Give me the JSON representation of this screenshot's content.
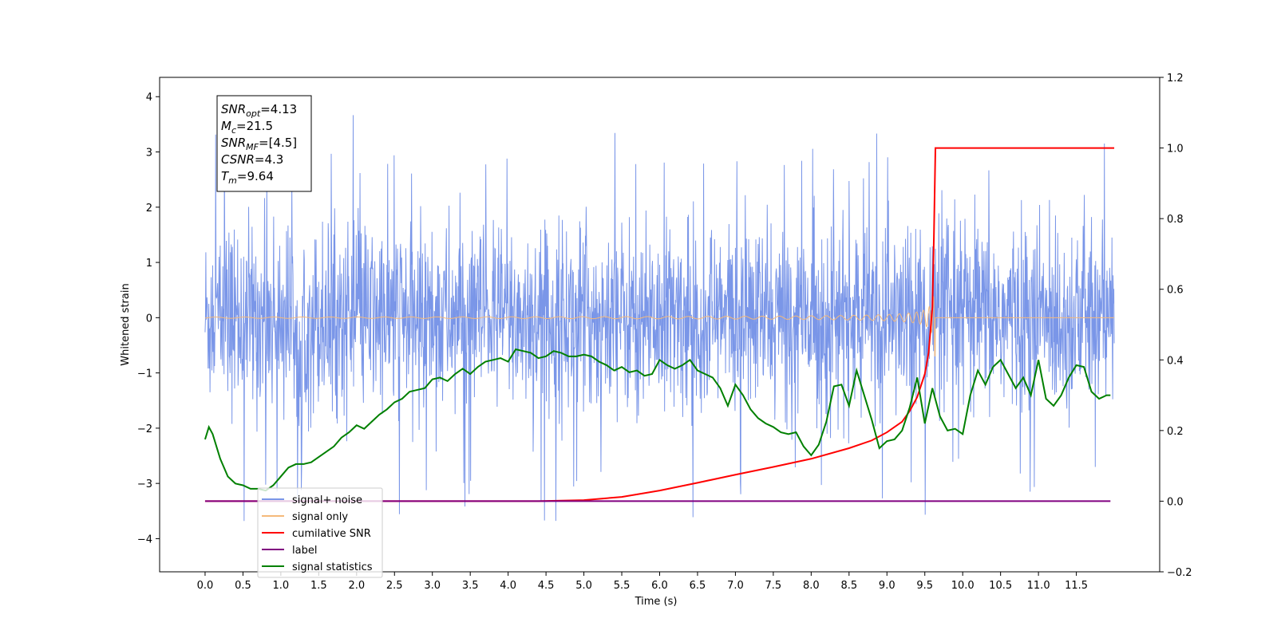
{
  "chart_data": {
    "type": "line",
    "xlabel": "Time (s)",
    "ylabel": "Whitened strain",
    "xlim": [
      -0.6,
      12.6
    ],
    "ylim": [
      -4.6,
      4.35
    ],
    "y2lim": [
      -0.2,
      1.2
    ],
    "x_ticks": [
      "0.0",
      "0.5",
      "1.0",
      "1.5",
      "2.0",
      "2.5",
      "3.0",
      "3.5",
      "4.0",
      "4.5",
      "5.0",
      "5.5",
      "6.0",
      "6.5",
      "7.0",
      "7.5",
      "8.0",
      "8.5",
      "9.0",
      "9.5",
      "10.0",
      "10.5",
      "11.0",
      "11.5"
    ],
    "y_ticks": [
      "4",
      "3",
      "2",
      "1",
      "0",
      "−1",
      "−2",
      "−3",
      "−4"
    ],
    "y2_ticks": [
      "1.2",
      "1.0",
      "0.8",
      "0.6",
      "0.4",
      "0.2",
      "0.0",
      "−0.2"
    ],
    "grid": false,
    "legend_position": "lower-left",
    "annotation": [
      {
        "base": "SNR",
        "sub": "opt",
        "value": "=4.13"
      },
      {
        "base": "M",
        "sub": "c",
        "value": "=21.5"
      },
      {
        "base": "SNR",
        "sub": "MF",
        "value": "=[4.5]"
      },
      {
        "base": "CSNR",
        "sub": "",
        "value": "=4.3"
      },
      {
        "base": "T",
        "sub": "m",
        "value": "=9.64"
      }
    ],
    "series": [
      {
        "name": "signal+ noise",
        "axis": "left",
        "color": "#7a96e8",
        "kind": "noise",
        "x_range": [
          0.0,
          12.0
        ],
        "mean": 0.0,
        "typical_range": [
          -2.0,
          2.0
        ],
        "extremes": [
          -4.1,
          3.9
        ]
      },
      {
        "name": "signal only",
        "axis": "left",
        "color": "#f5b97a",
        "kind": "chirp",
        "x_range": [
          0.0,
          12.0
        ],
        "merger_time": 9.64,
        "peak_amplitude": 0.8,
        "post_merger_value": 0.0
      },
      {
        "name": "cumilative SNR",
        "axis": "right",
        "color": "#ff0000",
        "x": [
          0.0,
          4.4,
          5.0,
          5.5,
          6.0,
          6.5,
          7.0,
          7.5,
          8.0,
          8.5,
          8.8,
          9.0,
          9.2,
          9.3,
          9.4,
          9.5,
          9.55,
          9.6,
          9.62,
          9.64,
          12.0
        ],
        "values": [
          0.0,
          0.0,
          0.003,
          0.012,
          0.03,
          0.052,
          0.075,
          0.097,
          0.12,
          0.15,
          0.172,
          0.195,
          0.225,
          0.255,
          0.295,
          0.36,
          0.42,
          0.55,
          0.75,
          1.0,
          1.0
        ]
      },
      {
        "name": "label",
        "axis": "right",
        "color": "#800080",
        "x": [
          0.0,
          11.95
        ],
        "values": [
          0.0,
          0.0
        ]
      },
      {
        "name": "signal statistics",
        "axis": "right",
        "color": "#008000",
        "x": [
          0.0,
          0.05,
          0.1,
          0.2,
          0.3,
          0.4,
          0.5,
          0.6,
          0.7,
          0.8,
          0.9,
          1.0,
          1.1,
          1.2,
          1.3,
          1.4,
          1.5,
          1.6,
          1.7,
          1.8,
          1.9,
          2.0,
          2.1,
          2.2,
          2.3,
          2.4,
          2.5,
          2.6,
          2.7,
          2.8,
          2.9,
          3.0,
          3.1,
          3.2,
          3.3,
          3.4,
          3.5,
          3.6,
          3.7,
          3.8,
          3.9,
          4.0,
          4.1,
          4.2,
          4.3,
          4.4,
          4.5,
          4.6,
          4.7,
          4.8,
          4.9,
          5.0,
          5.1,
          5.2,
          5.3,
          5.4,
          5.5,
          5.6,
          5.7,
          5.8,
          5.9,
          6.0,
          6.1,
          6.2,
          6.3,
          6.4,
          6.5,
          6.6,
          6.7,
          6.8,
          6.9,
          7.0,
          7.1,
          7.2,
          7.3,
          7.4,
          7.5,
          7.6,
          7.7,
          7.8,
          7.9,
          8.0,
          8.1,
          8.2,
          8.3,
          8.4,
          8.5,
          8.6,
          8.7,
          8.8,
          8.9,
          9.0,
          9.1,
          9.2,
          9.3,
          9.4,
          9.5,
          9.6,
          9.7,
          9.8,
          9.9,
          10.0,
          10.1,
          10.2,
          10.3,
          10.4,
          10.5,
          10.6,
          10.7,
          10.8,
          10.9,
          11.0,
          11.1,
          11.2,
          11.3,
          11.4,
          11.5,
          11.6,
          11.7,
          11.8,
          11.9,
          11.95
        ],
        "values": [
          0.175,
          0.21,
          0.19,
          0.12,
          0.07,
          0.05,
          0.045,
          0.035,
          0.035,
          0.03,
          0.045,
          0.07,
          0.095,
          0.105,
          0.105,
          0.11,
          0.125,
          0.14,
          0.155,
          0.18,
          0.195,
          0.215,
          0.205,
          0.225,
          0.245,
          0.26,
          0.28,
          0.29,
          0.31,
          0.315,
          0.32,
          0.345,
          0.35,
          0.34,
          0.36,
          0.375,
          0.36,
          0.38,
          0.395,
          0.4,
          0.405,
          0.395,
          0.43,
          0.425,
          0.42,
          0.405,
          0.41,
          0.425,
          0.42,
          0.41,
          0.41,
          0.415,
          0.41,
          0.395,
          0.385,
          0.37,
          0.38,
          0.365,
          0.37,
          0.355,
          0.36,
          0.4,
          0.385,
          0.375,
          0.385,
          0.4,
          0.37,
          0.36,
          0.35,
          0.32,
          0.27,
          0.33,
          0.3,
          0.26,
          0.235,
          0.22,
          0.21,
          0.195,
          0.19,
          0.195,
          0.155,
          0.13,
          0.16,
          0.225,
          0.325,
          0.33,
          0.27,
          0.37,
          0.3,
          0.23,
          0.15,
          0.17,
          0.175,
          0.2,
          0.265,
          0.35,
          0.22,
          0.32,
          0.24,
          0.2,
          0.205,
          0.19,
          0.3,
          0.37,
          0.33,
          0.38,
          0.4,
          0.36,
          0.32,
          0.35,
          0.3,
          0.4,
          0.29,
          0.27,
          0.3,
          0.35,
          0.385,
          0.38,
          0.31,
          0.29,
          0.3,
          0.3
        ]
      }
    ]
  }
}
